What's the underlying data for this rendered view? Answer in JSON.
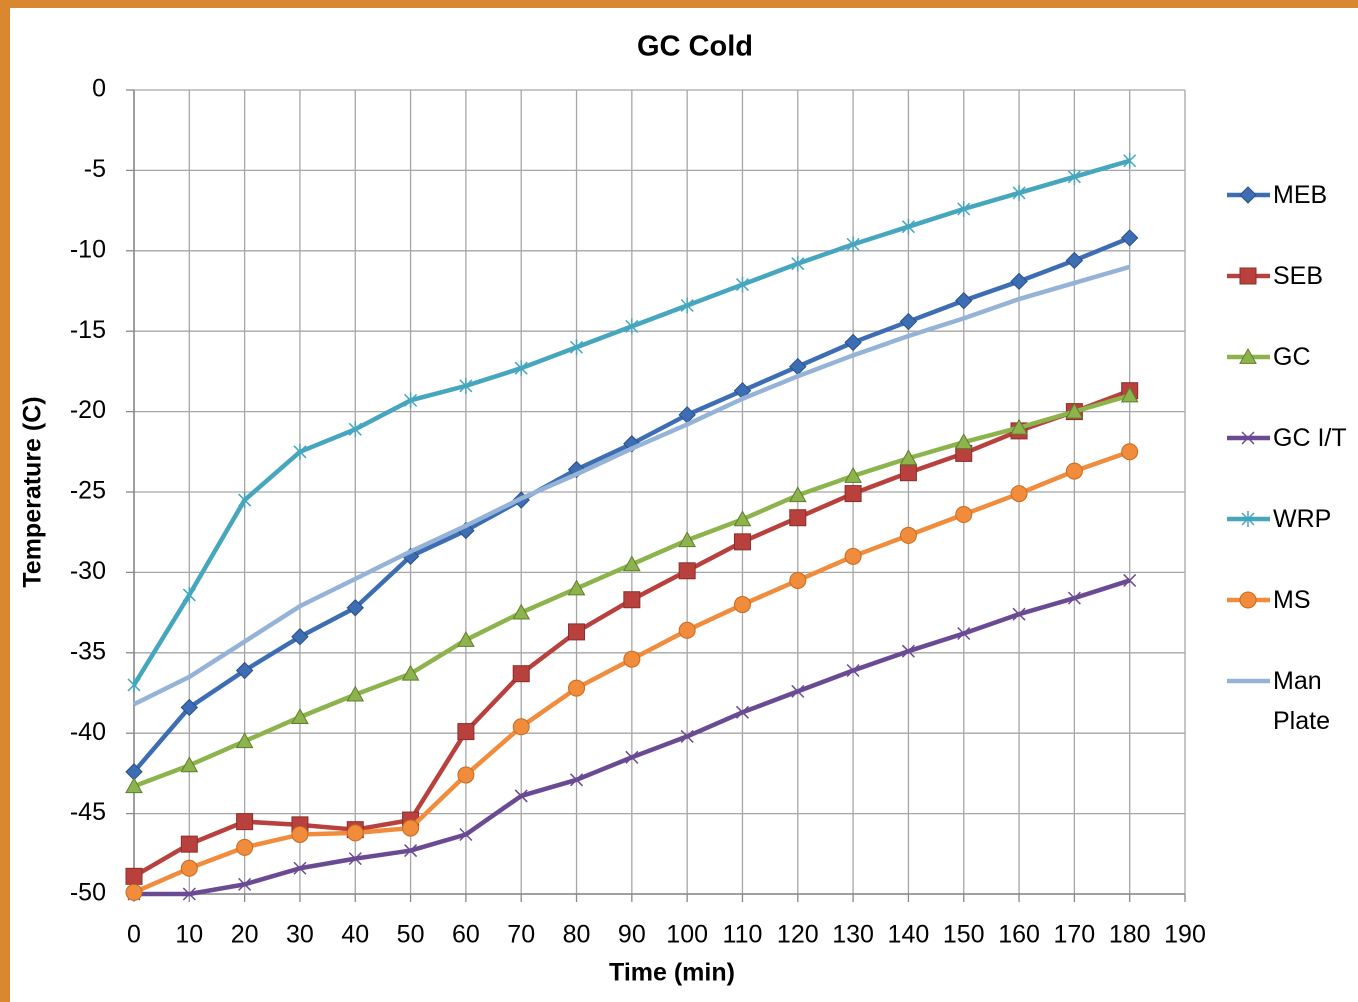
{
  "chart_data": {
    "type": "line",
    "title": "GC Cold",
    "x_label": "Time  (min)",
    "y_label": "Temperature (C)",
    "x": [
      0,
      10,
      20,
      30,
      40,
      50,
      60,
      70,
      80,
      90,
      100,
      110,
      120,
      130,
      140,
      150,
      160,
      170,
      180
    ],
    "xlim": [
      0,
      190
    ],
    "xticks": [
      0,
      10,
      20,
      30,
      40,
      50,
      60,
      70,
      80,
      90,
      100,
      110,
      120,
      130,
      140,
      150,
      160,
      170,
      180,
      190
    ],
    "ylim": [
      -50,
      0
    ],
    "yticks": [
      0,
      -5,
      -10,
      -15,
      -20,
      -25,
      -30,
      -35,
      -40,
      -45,
      -50
    ],
    "grid": true,
    "legend": "right",
    "series": [
      {
        "name": "MEB",
        "color": "#3d6eb4",
        "marker": "diamond",
        "values": [
          -42.4,
          -38.4,
          -36.1,
          -34.0,
          -32.2,
          -29.0,
          -27.4,
          -25.5,
          -23.6,
          -22.0,
          -20.2,
          -18.7,
          -17.2,
          -15.7,
          -14.4,
          -13.1,
          -11.9,
          -10.6,
          -9.2
        ]
      },
      {
        "name": "SEB",
        "color": "#b8413e",
        "marker": "square",
        "values": [
          -48.9,
          -46.9,
          -45.5,
          -45.7,
          -46.0,
          -45.4,
          -39.9,
          -36.3,
          -33.7,
          -31.7,
          -29.9,
          -28.1,
          -26.6,
          -25.1,
          -23.8,
          -22.6,
          -21.2,
          -20.0,
          -18.7
        ]
      },
      {
        "name": "GC",
        "color": "#8db34c",
        "marker": "triangle",
        "values": [
          -43.3,
          -42.0,
          -40.5,
          -39.0,
          -37.6,
          -36.3,
          -34.2,
          -32.5,
          -31.0,
          -29.5,
          -28.0,
          -26.7,
          -25.2,
          -24.0,
          -22.9,
          -21.9,
          -21.0,
          -20.0,
          -19.0
        ]
      },
      {
        "name": "GC I/T",
        "color": "#6b4a94",
        "marker": "x",
        "values": [
          -50.0,
          -50.0,
          -49.4,
          -48.4,
          -47.8,
          -47.3,
          -46.3,
          -43.9,
          -42.9,
          -41.5,
          -40.2,
          -38.7,
          -37.4,
          -36.1,
          -34.9,
          -33.8,
          -32.6,
          -31.6,
          -30.5
        ]
      },
      {
        "name": "WRP",
        "color": "#45a6bd",
        "marker": "star",
        "values": [
          -37.0,
          -31.4,
          -25.5,
          -22.5,
          -21.1,
          -19.3,
          -18.4,
          -17.3,
          -16.0,
          -14.7,
          -13.4,
          -12.1,
          -10.8,
          -9.6,
          -8.5,
          -7.4,
          -6.4,
          -5.4,
          -4.4
        ]
      },
      {
        "name": "MS",
        "color": "#f08c3c",
        "marker": "circle",
        "values": [
          -49.9,
          -48.4,
          -47.1,
          -46.3,
          -46.2,
          -45.9,
          -42.6,
          -39.6,
          -37.2,
          -35.4,
          -33.6,
          -32.0,
          -30.5,
          -29.0,
          -27.7,
          -26.4,
          -25.1,
          -23.7,
          -22.5
        ]
      },
      {
        "name": "Man Plate",
        "color": "#95b3d7",
        "marker": "none",
        "values": [
          -38.2,
          -36.5,
          -34.3,
          -32.1,
          -30.4,
          -28.7,
          -27.1,
          -25.4,
          -23.9,
          -22.3,
          -20.8,
          -19.2,
          -17.8,
          -16.5,
          -15.3,
          -14.2,
          -13.0,
          -12.0,
          -11.0
        ]
      }
    ]
  }
}
